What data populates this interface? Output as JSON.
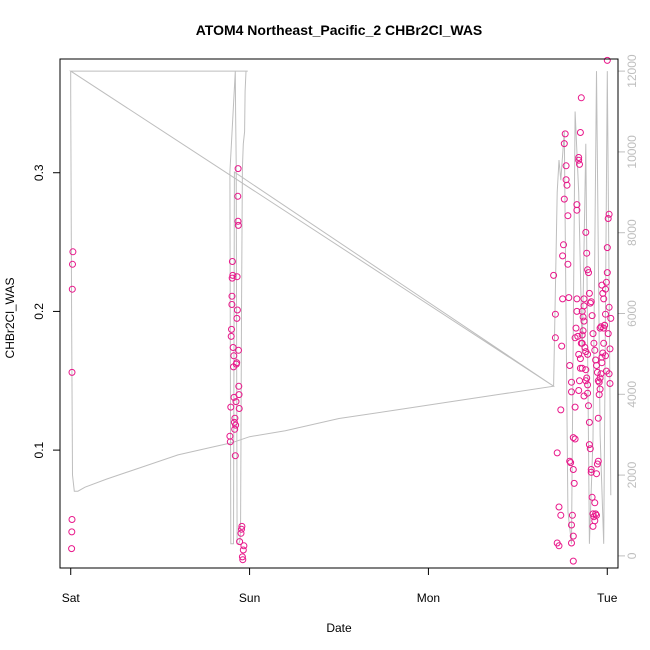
{
  "chart_data": {
    "type": "scatter",
    "title": "ATOM4 Northeast_Pacific_2 CHBr2Cl_WAS",
    "xlabel": "Date",
    "ylabel": "CHBr2Cl_WAS",
    "x_unit": "days",
    "xlim": [
      -0.06,
      3.06
    ],
    "ylim": [
      0.015,
      0.382
    ],
    "y2lim": [
      -300,
      12300
    ],
    "x_ticks": [
      {
        "value": 0,
        "label": "Sat"
      },
      {
        "value": 1,
        "label": "Sun"
      },
      {
        "value": 2,
        "label": "Mon"
      },
      {
        "value": 3,
        "label": "Tue"
      }
    ],
    "y_ticks": [
      {
        "value": 0.1,
        "label": "0.1"
      },
      {
        "value": 0.2,
        "label": "0.2"
      },
      {
        "value": 0.3,
        "label": "0.3"
      }
    ],
    "y2_ticks": [
      {
        "value": 0,
        "label": "0"
      },
      {
        "value": 2000,
        "label": "2000"
      },
      {
        "value": 4000,
        "label": "4000"
      },
      {
        "value": 6000,
        "label": "6000"
      },
      {
        "value": 8000,
        "label": "8000"
      },
      {
        "value": 10000,
        "label": "10000"
      },
      {
        "value": 12000,
        "label": "12000"
      }
    ],
    "colors": {
      "points": "#e8178a",
      "altitude_line": "#bebebe",
      "axis": "#000000",
      "right_axis": "#bebebe"
    },
    "series": [
      {
        "type": "scatter",
        "axis": "left",
        "points": [
          [
            0.005,
            0.029
          ],
          [
            0.006,
            0.041
          ],
          [
            0.007,
            0.05
          ],
          [
            0.007,
            0.156
          ],
          [
            0.009,
            0.216
          ],
          [
            0.01,
            0.234
          ],
          [
            0.012,
            0.243
          ],
          [
            0.89,
            0.11
          ],
          [
            0.892,
            0.106
          ],
          [
            0.895,
            0.131
          ],
          [
            0.897,
            0.182
          ],
          [
            0.899,
            0.187
          ],
          [
            0.901,
            0.205
          ],
          [
            0.902,
            0.211
          ],
          [
            0.903,
            0.224
          ],
          [
            0.904,
            0.236
          ],
          [
            0.906,
            0.226
          ],
          [
            0.908,
            0.174
          ],
          [
            0.91,
            0.16
          ],
          [
            0.912,
            0.168
          ],
          [
            0.913,
            0.138
          ],
          [
            0.915,
            0.12
          ],
          [
            0.917,
            0.115
          ],
          [
            0.918,
            0.123
          ],
          [
            0.92,
            0.096
          ],
          [
            0.922,
            0.118
          ],
          [
            0.924,
            0.135
          ],
          [
            0.926,
            0.162
          ],
          [
            0.928,
            0.163
          ],
          [
            0.929,
            0.195
          ],
          [
            0.93,
            0.225
          ],
          [
            0.932,
            0.201
          ],
          [
            0.934,
            0.283
          ],
          [
            0.935,
            0.265
          ],
          [
            0.936,
            0.303
          ],
          [
            0.937,
            0.262
          ],
          [
            0.938,
            0.172
          ],
          [
            0.94,
            0.146
          ],
          [
            0.941,
            0.14
          ],
          [
            0.942,
            0.13
          ],
          [
            0.944,
            0.034
          ],
          [
            0.952,
            0.04
          ],
          [
            0.955,
            0.043
          ],
          [
            0.957,
            0.045
          ],
          [
            0.96,
            0.023
          ],
          [
            0.962,
            0.021
          ],
          [
            0.965,
            0.028
          ],
          [
            0.968,
            0.031
          ],
          [
            2.7,
            0.226
          ],
          [
            2.71,
            0.181
          ],
          [
            2.71,
            0.198
          ],
          [
            2.72,
            0.098
          ],
          [
            2.72,
            0.033
          ],
          [
            2.73,
            0.031
          ],
          [
            2.73,
            0.059
          ],
          [
            2.74,
            0.129
          ],
          [
            2.74,
            0.053
          ],
          [
            2.745,
            0.175
          ],
          [
            2.75,
            0.209
          ],
          [
            2.75,
            0.24
          ],
          [
            2.755,
            0.248
          ],
          [
            2.76,
            0.281
          ],
          [
            2.76,
            0.321
          ],
          [
            2.765,
            0.328
          ],
          [
            2.77,
            0.305
          ],
          [
            2.77,
            0.295
          ],
          [
            2.775,
            0.291
          ],
          [
            2.78,
            0.269
          ],
          [
            2.78,
            0.234
          ],
          [
            2.785,
            0.21
          ],
          [
            2.79,
            0.161
          ],
          [
            2.79,
            0.092
          ],
          [
            2.795,
            0.091
          ],
          [
            2.8,
            0.046
          ],
          [
            2.8,
            0.033
          ],
          [
            2.805,
            0.053
          ],
          [
            2.81,
            0.038
          ],
          [
            2.81,
            0.02
          ],
          [
            2.815,
            0.076
          ],
          [
            2.82,
            0.108
          ],
          [
            2.82,
            0.181
          ],
          [
            2.825,
            0.188
          ],
          [
            2.83,
            0.2
          ],
          [
            2.83,
            0.209
          ],
          [
            2.835,
            0.182
          ],
          [
            2.84,
            0.169
          ],
          [
            2.84,
            0.143
          ],
          [
            2.845,
            0.15
          ],
          [
            2.85,
            0.159
          ],
          [
            2.85,
            0.166
          ],
          [
            2.855,
            0.177
          ],
          [
            2.86,
            0.183
          ],
          [
            2.86,
            0.177
          ],
          [
            2.865,
            0.186
          ],
          [
            2.87,
            0.193
          ],
          [
            2.87,
            0.204
          ],
          [
            2.875,
            0.174
          ],
          [
            2.88,
            0.171
          ],
          [
            2.88,
            0.158
          ],
          [
            2.885,
            0.152
          ],
          [
            2.89,
            0.147
          ],
          [
            2.89,
            0.141
          ],
          [
            2.895,
            0.132
          ],
          [
            2.9,
            0.12
          ],
          [
            2.9,
            0.104
          ],
          [
            2.905,
            0.101
          ],
          [
            2.91,
            0.086
          ],
          [
            2.91,
            0.084
          ],
          [
            2.915,
            0.066
          ],
          [
            2.92,
            0.054
          ],
          [
            2.92,
            0.045
          ],
          [
            2.925,
            0.052
          ],
          [
            2.93,
            0.062
          ],
          [
            2.93,
            0.049
          ],
          [
            2.935,
            0.054
          ],
          [
            2.94,
            0.053
          ],
          [
            2.94,
            0.083
          ],
          [
            2.945,
            0.09
          ],
          [
            2.95,
            0.092
          ],
          [
            2.95,
            0.123
          ],
          [
            2.955,
            0.14
          ],
          [
            2.96,
            0.144
          ],
          [
            2.96,
            0.152
          ],
          [
            2.965,
            0.155
          ],
          [
            2.97,
            0.163
          ],
          [
            2.97,
            0.167
          ],
          [
            2.975,
            0.17
          ],
          [
            2.98,
            0.177
          ],
          [
            2.98,
            0.188
          ],
          [
            2.985,
            0.19
          ],
          [
            2.99,
            0.198
          ],
          [
            2.99,
            0.216
          ],
          [
            2.995,
            0.221
          ],
          [
            3.0,
            0.228
          ],
          [
            3.0,
            0.246
          ],
          [
            3.005,
            0.267
          ],
          [
            3.01,
            0.27
          ],
          [
            3.01,
            0.203
          ],
          [
            3.015,
            0.173
          ],
          [
            2.8,
            0.142
          ],
          [
            2.8,
            0.149
          ],
          [
            2.81,
            0.109
          ],
          [
            2.81,
            0.086
          ],
          [
            2.82,
            0.131
          ],
          [
            2.83,
            0.273
          ],
          [
            2.83,
            0.277
          ],
          [
            2.84,
            0.309
          ],
          [
            2.84,
            0.311
          ],
          [
            2.845,
            0.306
          ],
          [
            2.85,
            0.329
          ],
          [
            2.855,
            0.354
          ],
          [
            2.86,
            0.2
          ],
          [
            2.865,
            0.196
          ],
          [
            2.87,
            0.209
          ],
          [
            2.88,
            0.257
          ],
          [
            2.885,
            0.242
          ],
          [
            2.89,
            0.23
          ],
          [
            2.895,
            0.228
          ],
          [
            2.9,
            0.213
          ],
          [
            2.905,
            0.206
          ],
          [
            2.91,
            0.207
          ],
          [
            2.915,
            0.197
          ],
          [
            2.92,
            0.184
          ],
          [
            2.925,
            0.177
          ],
          [
            2.93,
            0.172
          ],
          [
            2.935,
            0.165
          ],
          [
            2.94,
            0.161
          ],
          [
            2.945,
            0.156
          ],
          [
            2.95,
            0.15
          ],
          [
            2.955,
            0.149
          ],
          [
            2.96,
            0.188
          ],
          [
            2.965,
            0.189
          ],
          [
            2.97,
            0.219
          ],
          [
            2.975,
            0.213
          ],
          [
            2.98,
            0.209
          ],
          [
            2.985,
            0.19
          ],
          [
            2.99,
            0.168
          ],
          [
            2.995,
            0.157
          ],
          [
            3.0,
            0.381
          ],
          [
            3.005,
            0.184
          ],
          [
            3.01,
            0.155
          ],
          [
            3.015,
            0.148
          ],
          [
            3.02,
            0.195
          ],
          [
            2.86,
            0.159
          ],
          [
            2.87,
            0.139
          ],
          [
            2.88,
            0.15
          ],
          [
            2.89,
            0.169
          ]
        ]
      },
      {
        "type": "line",
        "axis": "right",
        "points": [
          [
            0.0,
            12000
          ],
          [
            0.0,
            11500
          ],
          [
            0.005,
            6000
          ],
          [
            0.01,
            2000
          ],
          [
            0.02,
            1600
          ],
          [
            0.04,
            1600
          ],
          [
            0.08,
            1700
          ],
          [
            0.2,
            1900
          ],
          [
            0.4,
            2200
          ],
          [
            0.6,
            2500
          ],
          [
            0.8,
            2700
          ],
          [
            0.9,
            2800
          ],
          [
            1.0,
            2950
          ],
          [
            1.2,
            3100
          ],
          [
            1.5,
            3400
          ],
          [
            1.8,
            3600
          ],
          [
            2.1,
            3800
          ],
          [
            2.4,
            4000
          ],
          [
            2.7,
            4200
          ],
          [
            0.0,
            12000
          ],
          [
            0.3,
            12000
          ],
          [
            0.6,
            12000
          ],
          [
            0.9,
            12000
          ],
          [
            0.99,
            12000
          ],
          [
            0.98,
            12000
          ],
          [
            0.975,
            11500
          ],
          [
            0.972,
            10500
          ],
          [
            0.965,
            10200
          ],
          [
            0.96,
            9600
          ],
          [
            0.955,
            6000
          ],
          [
            0.952,
            3000
          ],
          [
            0.95,
            900
          ],
          [
            0.947,
            400
          ],
          [
            0.94,
            300
          ],
          [
            0.935,
            300
          ],
          [
            0.93,
            300
          ],
          [
            0.925,
            9700
          ],
          [
            0.922,
            11000
          ],
          [
            0.92,
            12000
          ],
          [
            0.89,
            9500
          ],
          [
            0.895,
            300
          ],
          [
            0.9,
            300
          ],
          [
            0.905,
            300
          ],
          [
            0.91,
            300
          ],
          [
            0.915,
            9500
          ],
          [
            2.7,
            4200
          ],
          [
            2.72,
            9000
          ],
          [
            2.73,
            9800
          ],
          [
            2.74,
            9300
          ],
          [
            2.76,
            10500
          ],
          [
            2.78,
            1100
          ],
          [
            2.8,
            300
          ],
          [
            2.82,
            11000
          ],
          [
            2.84,
            9000
          ],
          [
            2.86,
            5000
          ],
          [
            2.88,
            10200
          ],
          [
            2.9,
            300
          ],
          [
            2.92,
            2900
          ],
          [
            2.94,
            12000
          ],
          [
            2.96,
            3000
          ],
          [
            2.98,
            300
          ],
          [
            3.0,
            12000
          ],
          [
            3.02,
            1500
          ]
        ]
      }
    ]
  }
}
